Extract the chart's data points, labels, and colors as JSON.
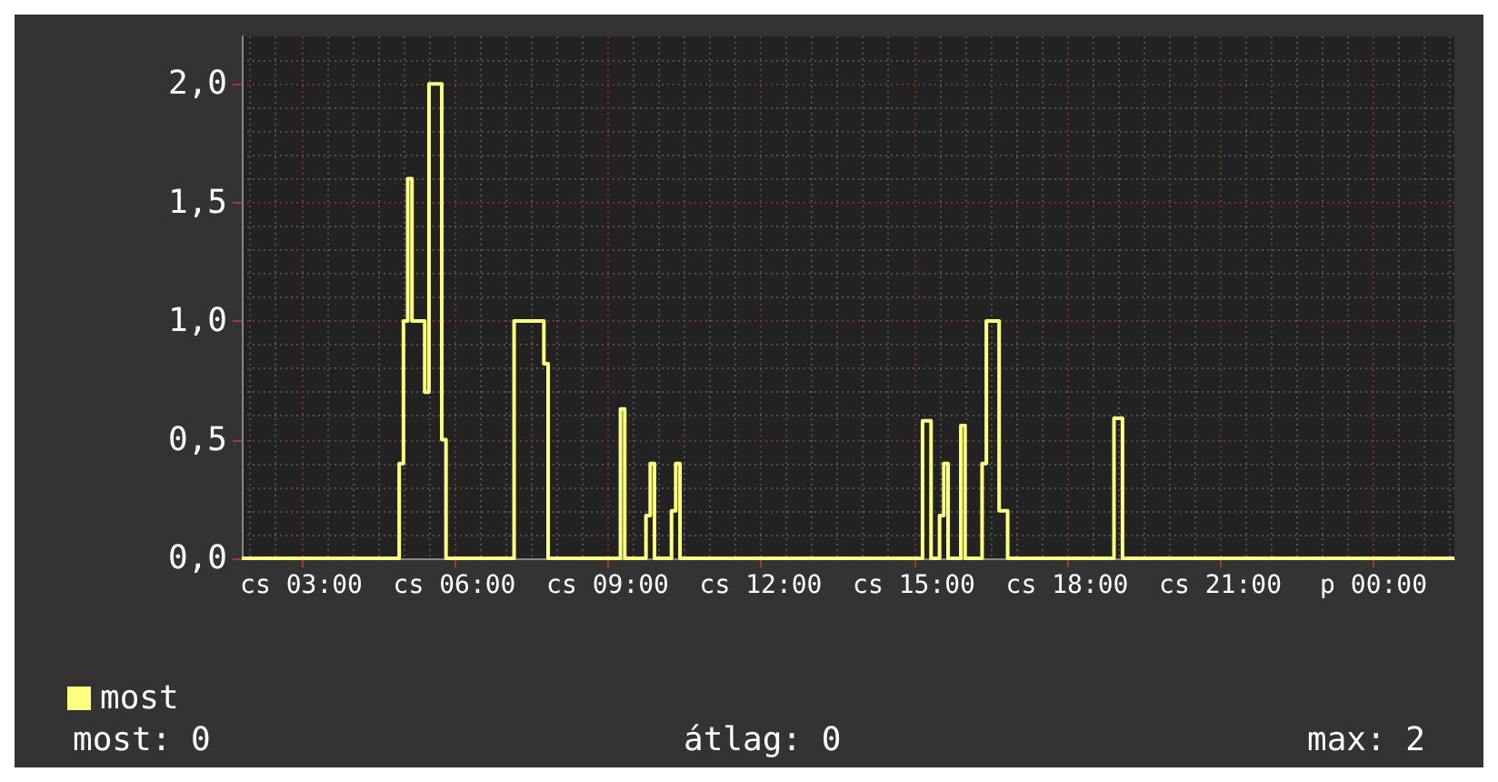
{
  "chart_data": {
    "type": "step",
    "categories": [
      null,
      null,
      null,
      null,
      null,
      null,
      null,
      null,
      null,
      null,
      null,
      null,
      null,
      null,
      "cs 03:00",
      null,
      null,
      null,
      null,
      null,
      null,
      null,
      null,
      null,
      null,
      null,
      null,
      null,
      null,
      null,
      null,
      null,
      null,
      null,
      null,
      null,
      null,
      null,
      null,
      null,
      null,
      null,
      null,
      null,
      null,
      null,
      null,
      null,
      null,
      null,
      "cs 06:00",
      null,
      null,
      null,
      null,
      null,
      null,
      null,
      null,
      null,
      null,
      null,
      null,
      null,
      null,
      null,
      null,
      null,
      null,
      null,
      null,
      null,
      null,
      null,
      null,
      null,
      null,
      null,
      null,
      null,
      null,
      null,
      null,
      null,
      null,
      null,
      "cs 09:00",
      null,
      null,
      null,
      null,
      null,
      null,
      null,
      null,
      null,
      null,
      null,
      null,
      null,
      null,
      null,
      null,
      null,
      null,
      null,
      null,
      null,
      null,
      null,
      null,
      null,
      null,
      null,
      null,
      null,
      null,
      null,
      null,
      null,
      null,
      null,
      "cs 12:00",
      null,
      null,
      null,
      null,
      null,
      null,
      null,
      null,
      null,
      null,
      null,
      null,
      null,
      null,
      null,
      null,
      null,
      null,
      null,
      null,
      null,
      null,
      null,
      null,
      null,
      null,
      null,
      null,
      null,
      null,
      null,
      null,
      null,
      null,
      null,
      "cs 15:00",
      null,
      null,
      null,
      null,
      null,
      null,
      null,
      null,
      null,
      null,
      null,
      null,
      null,
      null,
      null,
      null,
      null,
      null,
      null,
      null,
      null,
      null,
      null,
      null,
      null,
      null,
      null,
      null,
      null,
      null,
      null,
      null,
      null,
      null,
      null,
      "cs 18:00",
      null,
      null,
      null,
      null,
      null,
      null,
      null,
      null,
      null,
      null,
      null,
      null,
      null,
      null,
      null,
      null,
      null,
      null,
      null,
      null,
      null,
      null,
      null,
      null,
      null,
      null,
      null,
      null,
      null,
      null,
      null,
      null,
      null,
      null,
      null,
      "cs 21:00",
      null,
      null,
      null,
      null,
      null,
      null,
      null,
      null,
      null,
      null,
      null,
      null,
      null,
      null,
      null,
      null,
      null,
      null,
      null,
      null,
      null,
      null,
      null,
      null,
      null,
      null,
      null,
      null,
      null,
      null,
      null,
      null,
      null,
      null,
      null,
      "p 00:00",
      null,
      null,
      null,
      null,
      null,
      null,
      null,
      null,
      null,
      null,
      null,
      null,
      null,
      null,
      null,
      null,
      null,
      null,
      null
    ],
    "series": [
      {
        "name": "most",
        "color": "#ffff80",
        "values": [
          0,
          0,
          0,
          0,
          0,
          0,
          0,
          0,
          0,
          0,
          0,
          0,
          0,
          0,
          0,
          0,
          0,
          0,
          0,
          0,
          0,
          0,
          0,
          0,
          0,
          0,
          0,
          0,
          0,
          0,
          0,
          0,
          0,
          0,
          0,
          0,
          0,
          0.4,
          1.0,
          1.6,
          1.0,
          1.0,
          1.0,
          0.7,
          2.0,
          2.0,
          2.0,
          0.5,
          0,
          0,
          0,
          0,
          0,
          0,
          0,
          0,
          0,
          0,
          0,
          0,
          0,
          0,
          0,
          0,
          1.0,
          1.0,
          1.0,
          1.0,
          1.0,
          1.0,
          1.0,
          0.82,
          0,
          0,
          0,
          0,
          0,
          0,
          0,
          0,
          0,
          0,
          0,
          0,
          0,
          0,
          0,
          0,
          0,
          0.63,
          0,
          0,
          0,
          0,
          0,
          0.18,
          0.4,
          0,
          0,
          0,
          0,
          0.2,
          0.4,
          0,
          0,
          0,
          0,
          0,
          0,
          0,
          0,
          0,
          0,
          0,
          0,
          0,
          0,
          0,
          0,
          0,
          0,
          0,
          0,
          0,
          0,
          0,
          0,
          0,
          0,
          0,
          0,
          0,
          0,
          0,
          0,
          0,
          0,
          0,
          0,
          0,
          0,
          0,
          0,
          0,
          0,
          0,
          0,
          0,
          0,
          0,
          0,
          0,
          0,
          0,
          0,
          0,
          0,
          0,
          0,
          0,
          0.58,
          0.58,
          0,
          0,
          0.18,
          0.4,
          0,
          0,
          0,
          0.56,
          0,
          0,
          0,
          0,
          0.4,
          1.0,
          1.0,
          1.0,
          0.2,
          0.2,
          0,
          0,
          0,
          0,
          0,
          0,
          0,
          0,
          0,
          0,
          0,
          0,
          0,
          0,
          0,
          0,
          0,
          0,
          0,
          0,
          0,
          0,
          0,
          0,
          0,
          0.59,
          0.59,
          0,
          0,
          0,
          0,
          0,
          0,
          0,
          0,
          0,
          0,
          0,
          0,
          0,
          0,
          0,
          0,
          0,
          0,
          0,
          0,
          0,
          0,
          0,
          0,
          0,
          0,
          0,
          0,
          0,
          0,
          0,
          0,
          0,
          0,
          0,
          0,
          0,
          0,
          0,
          0,
          0,
          0,
          0,
          0,
          0,
          0,
          0,
          0,
          0,
          0,
          0,
          0,
          0,
          0,
          0,
          0,
          0,
          0,
          0,
          0,
          0,
          0,
          0,
          0,
          0,
          0,
          0,
          0,
          0,
          0,
          0,
          0,
          0,
          0,
          0,
          0,
          0,
          0,
          0
        ]
      }
    ],
    "ylim": [
      0,
      2.2
    ],
    "yticks": [
      {
        "value": 0,
        "label": "0,0"
      },
      {
        "value": 0.5,
        "label": "0,5"
      },
      {
        "value": 1,
        "label": "1,0"
      },
      {
        "value": 1.5,
        "label": "1,5"
      },
      {
        "value": 2,
        "label": "2,0"
      }
    ],
    "grid": true,
    "legend": "bottom left",
    "annotations": [
      "most: 0",
      "átlag: 0",
      "max: 2"
    ]
  }
}
